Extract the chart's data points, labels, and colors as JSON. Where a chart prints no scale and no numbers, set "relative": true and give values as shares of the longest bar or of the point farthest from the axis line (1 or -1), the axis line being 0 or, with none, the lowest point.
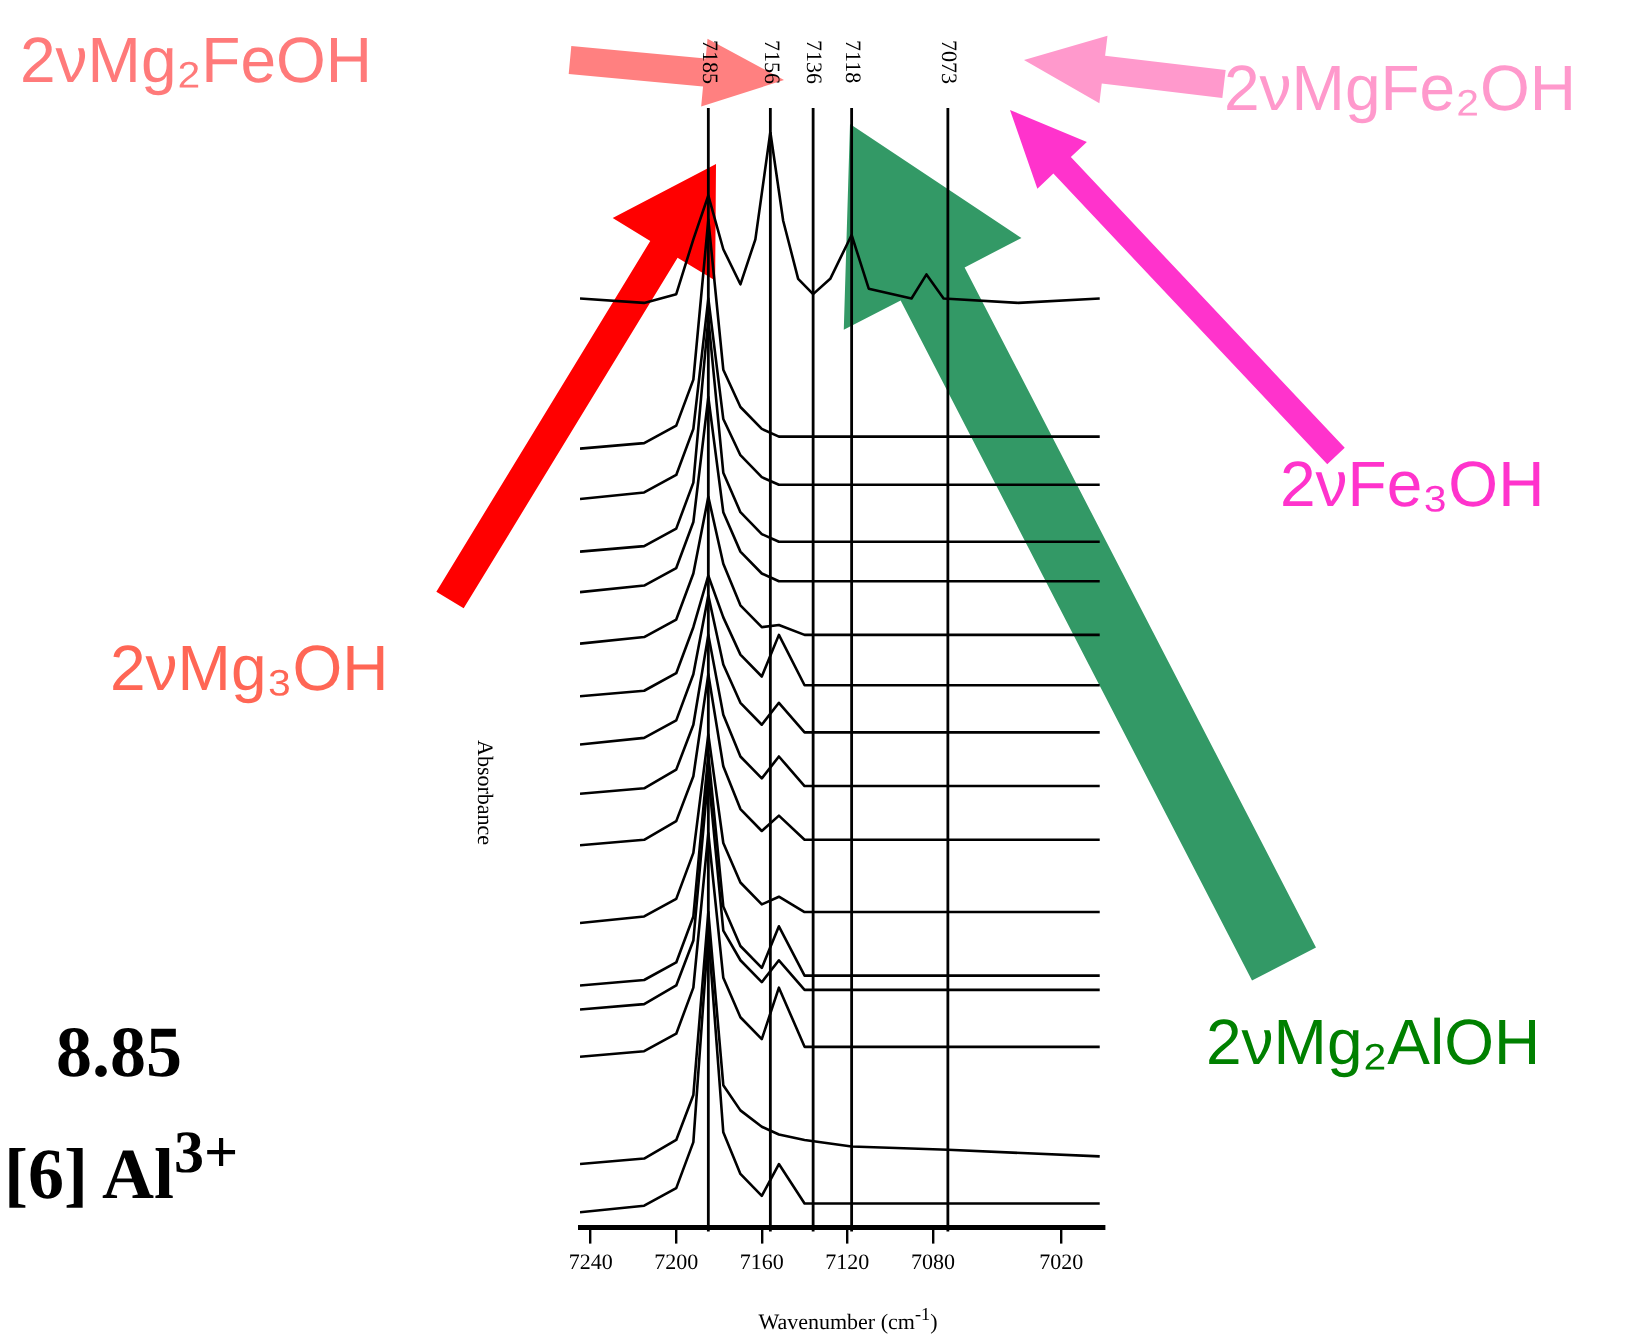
{
  "chart_data": {
    "type": "line",
    "relative": true,
    "xlabel": "Wavenumber (cm$^{-1}$)",
    "ylabel": "Absorbance",
    "xlim": [
      7245,
      7000
    ],
    "xticks": [
      7240,
      7200,
      7160,
      7120,
      7080,
      7020
    ],
    "x": [
      7245,
      7215,
      7200,
      7192,
      7185,
      7178,
      7170,
      7160,
      7152,
      7140,
      7118,
      7073,
      7002
    ],
    "series": [
      {
        "color": "#000000",
        "x": [
          7245,
          7215,
          7200,
          7192,
          7185,
          7178,
          7170,
          7163,
          7156,
          7150,
          7143,
          7136,
          7128,
          7118,
          7110,
          7090,
          7083,
          7075,
          7040,
          7002
        ],
        "values": [
          0.848,
          0.844,
          0.852,
          0.902,
          0.942,
          0.893,
          0.861,
          0.902,
          1,
          0.919,
          0.866,
          0.852,
          0.866,
          0.906,
          0.857,
          0.848,
          0.87,
          0.848,
          0.844,
          0.848
        ]
      },
      {
        "color": "#000000",
        "values": [
          0.711,
          0.716,
          0.732,
          0.774,
          0.92,
          0.783,
          0.749,
          0.729,
          0.722,
          0.722,
          0.722,
          0.722,
          0.722
        ]
      },
      {
        "color": "#000000",
        "values": [
          0.665,
          0.671,
          0.687,
          0.729,
          0.848,
          0.738,
          0.705,
          0.685,
          0.678,
          0.678,
          0.678,
          0.678,
          0.678
        ]
      },
      {
        "color": "#000000",
        "values": [
          0.617,
          0.622,
          0.638,
          0.68,
          0.83,
          0.689,
          0.653,
          0.633,
          0.626,
          0.626,
          0.626,
          0.626,
          0.626
        ]
      },
      {
        "color": "#000000",
        "values": [
          0.58,
          0.586,
          0.602,
          0.644,
          0.758,
          0.653,
          0.617,
          0.597,
          0.59,
          0.59,
          0.59,
          0.59,
          0.59
        ]
      },
      {
        "color": "#000000",
        "values": [
          0.533,
          0.539,
          0.555,
          0.597,
          0.667,
          0.606,
          0.568,
          0.548,
          0.55,
          0.541,
          0.541,
          0.541,
          0.541
        ]
      },
      {
        "color": "#000000",
        "values": [
          0.485,
          0.49,
          0.506,
          0.548,
          0.595,
          0.557,
          0.523,
          0.503,
          0.541,
          0.495,
          0.495,
          0.495,
          0.495
        ]
      },
      {
        "color": "#000000",
        "values": [
          0.441,
          0.447,
          0.463,
          0.505,
          0.577,
          0.514,
          0.479,
          0.459,
          0.479,
          0.452,
          0.452,
          0.452,
          0.452
        ]
      },
      {
        "color": "#000000",
        "values": [
          0.396,
          0.401,
          0.418,
          0.459,
          0.541,
          0.468,
          0.43,
          0.41,
          0.43,
          0.403,
          0.403,
          0.403,
          0.403
        ]
      },
      {
        "color": "#000000",
        "values": [
          0.349,
          0.354,
          0.371,
          0.412,
          0.505,
          0.421,
          0.382,
          0.362,
          0.376,
          0.354,
          0.354,
          0.354,
          0.354
        ]
      },
      {
        "color": "#000000",
        "values": [
          0.278,
          0.284,
          0.3,
          0.342,
          0.45,
          0.351,
          0.315,
          0.295,
          0.302,
          0.288,
          0.288,
          0.288,
          0.288
        ]
      },
      {
        "color": "#000000",
        "values": [
          0.221,
          0.226,
          0.242,
          0.284,
          0.432,
          0.293,
          0.257,
          0.237,
          0.275,
          0.23,
          0.23,
          0.23,
          0.23
        ]
      },
      {
        "color": "#000000",
        "values": [
          0.199,
          0.204,
          0.221,
          0.262,
          0.414,
          0.271,
          0.244,
          0.224,
          0.244,
          0.217,
          0.217,
          0.217,
          0.217
        ]
      },
      {
        "color": "#000000",
        "values": [
          0.156,
          0.161,
          0.177,
          0.219,
          0.36,
          0.228,
          0.192,
          0.172,
          0.219,
          0.165,
          0.165,
          0.165,
          0.165
        ]
      },
      {
        "color": "#000000",
        "values": [
          0.058,
          0.063,
          0.08,
          0.121,
          0.288,
          0.13,
          0.107,
          0.092,
          0.085,
          0.08,
          0.074,
          0.071,
          0.065
        ]
      },
      {
        "color": "#000000",
        "values": [
          0.014,
          0.02,
          0.036,
          0.078,
          0.269,
          0.087,
          0.049,
          0.029,
          0.058,
          0.022,
          0.022,
          0.022,
          0.022
        ]
      }
    ],
    "ref_lines": [
      {
        "axis": "x",
        "value": 7185,
        "label": "7185",
        "color": "#000000"
      },
      {
        "axis": "x",
        "value": 7156,
        "label": "7156",
        "color": "#000000"
      },
      {
        "axis": "x",
        "value": 7136,
        "label": "7136",
        "color": "#000000"
      },
      {
        "axis": "x",
        "value": 7118,
        "label": "7118",
        "color": "#000000"
      },
      {
        "axis": "x",
        "value": 7073,
        "label": "7073",
        "color": "#000000"
      }
    ],
    "annotations": [
      "2νMg₂FeOH",
      "2νMgFe₂OH",
      "2νFe₃OH",
      "2νMg₃OH",
      "2νMg₂AlOH",
      "8.85",
      "[6] Al$^{3+}$"
    ],
    "grid": false,
    "legend": false,
    "marker": "none",
    "line_style": "solid",
    "tick_labels": "x"
  }
}
